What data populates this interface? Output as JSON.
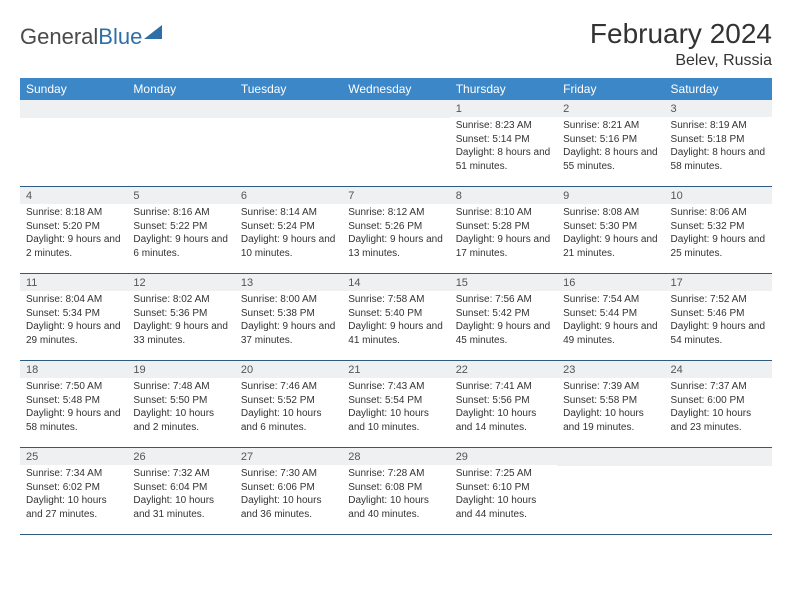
{
  "brand": {
    "word1": "General",
    "word2": "Blue"
  },
  "title": "February 2024",
  "location": "Belev, Russia",
  "colors": {
    "header_bg": "#3b87c8",
    "daynum_bg": "#eef0f1",
    "border": "#2f5a82",
    "brand_blue": "#2f6fa8"
  },
  "dow": [
    "Sunday",
    "Monday",
    "Tuesday",
    "Wednesday",
    "Thursday",
    "Friday",
    "Saturday"
  ],
  "weeks": [
    [
      null,
      null,
      null,
      null,
      {
        "n": "1",
        "sr": "Sunrise: 8:23 AM",
        "ss": "Sunset: 5:14 PM",
        "dl": "Daylight: 8 hours and 51 minutes."
      },
      {
        "n": "2",
        "sr": "Sunrise: 8:21 AM",
        "ss": "Sunset: 5:16 PM",
        "dl": "Daylight: 8 hours and 55 minutes."
      },
      {
        "n": "3",
        "sr": "Sunrise: 8:19 AM",
        "ss": "Sunset: 5:18 PM",
        "dl": "Daylight: 8 hours and 58 minutes."
      }
    ],
    [
      {
        "n": "4",
        "sr": "Sunrise: 8:18 AM",
        "ss": "Sunset: 5:20 PM",
        "dl": "Daylight: 9 hours and 2 minutes."
      },
      {
        "n": "5",
        "sr": "Sunrise: 8:16 AM",
        "ss": "Sunset: 5:22 PM",
        "dl": "Daylight: 9 hours and 6 minutes."
      },
      {
        "n": "6",
        "sr": "Sunrise: 8:14 AM",
        "ss": "Sunset: 5:24 PM",
        "dl": "Daylight: 9 hours and 10 minutes."
      },
      {
        "n": "7",
        "sr": "Sunrise: 8:12 AM",
        "ss": "Sunset: 5:26 PM",
        "dl": "Daylight: 9 hours and 13 minutes."
      },
      {
        "n": "8",
        "sr": "Sunrise: 8:10 AM",
        "ss": "Sunset: 5:28 PM",
        "dl": "Daylight: 9 hours and 17 minutes."
      },
      {
        "n": "9",
        "sr": "Sunrise: 8:08 AM",
        "ss": "Sunset: 5:30 PM",
        "dl": "Daylight: 9 hours and 21 minutes."
      },
      {
        "n": "10",
        "sr": "Sunrise: 8:06 AM",
        "ss": "Sunset: 5:32 PM",
        "dl": "Daylight: 9 hours and 25 minutes."
      }
    ],
    [
      {
        "n": "11",
        "sr": "Sunrise: 8:04 AM",
        "ss": "Sunset: 5:34 PM",
        "dl": "Daylight: 9 hours and 29 minutes."
      },
      {
        "n": "12",
        "sr": "Sunrise: 8:02 AM",
        "ss": "Sunset: 5:36 PM",
        "dl": "Daylight: 9 hours and 33 minutes."
      },
      {
        "n": "13",
        "sr": "Sunrise: 8:00 AM",
        "ss": "Sunset: 5:38 PM",
        "dl": "Daylight: 9 hours and 37 minutes."
      },
      {
        "n": "14",
        "sr": "Sunrise: 7:58 AM",
        "ss": "Sunset: 5:40 PM",
        "dl": "Daylight: 9 hours and 41 minutes."
      },
      {
        "n": "15",
        "sr": "Sunrise: 7:56 AM",
        "ss": "Sunset: 5:42 PM",
        "dl": "Daylight: 9 hours and 45 minutes."
      },
      {
        "n": "16",
        "sr": "Sunrise: 7:54 AM",
        "ss": "Sunset: 5:44 PM",
        "dl": "Daylight: 9 hours and 49 minutes."
      },
      {
        "n": "17",
        "sr": "Sunrise: 7:52 AM",
        "ss": "Sunset: 5:46 PM",
        "dl": "Daylight: 9 hours and 54 minutes."
      }
    ],
    [
      {
        "n": "18",
        "sr": "Sunrise: 7:50 AM",
        "ss": "Sunset: 5:48 PM",
        "dl": "Daylight: 9 hours and 58 minutes."
      },
      {
        "n": "19",
        "sr": "Sunrise: 7:48 AM",
        "ss": "Sunset: 5:50 PM",
        "dl": "Daylight: 10 hours and 2 minutes."
      },
      {
        "n": "20",
        "sr": "Sunrise: 7:46 AM",
        "ss": "Sunset: 5:52 PM",
        "dl": "Daylight: 10 hours and 6 minutes."
      },
      {
        "n": "21",
        "sr": "Sunrise: 7:43 AM",
        "ss": "Sunset: 5:54 PM",
        "dl": "Daylight: 10 hours and 10 minutes."
      },
      {
        "n": "22",
        "sr": "Sunrise: 7:41 AM",
        "ss": "Sunset: 5:56 PM",
        "dl": "Daylight: 10 hours and 14 minutes."
      },
      {
        "n": "23",
        "sr": "Sunrise: 7:39 AM",
        "ss": "Sunset: 5:58 PM",
        "dl": "Daylight: 10 hours and 19 minutes."
      },
      {
        "n": "24",
        "sr": "Sunrise: 7:37 AM",
        "ss": "Sunset: 6:00 PM",
        "dl": "Daylight: 10 hours and 23 minutes."
      }
    ],
    [
      {
        "n": "25",
        "sr": "Sunrise: 7:34 AM",
        "ss": "Sunset: 6:02 PM",
        "dl": "Daylight: 10 hours and 27 minutes."
      },
      {
        "n": "26",
        "sr": "Sunrise: 7:32 AM",
        "ss": "Sunset: 6:04 PM",
        "dl": "Daylight: 10 hours and 31 minutes."
      },
      {
        "n": "27",
        "sr": "Sunrise: 7:30 AM",
        "ss": "Sunset: 6:06 PM",
        "dl": "Daylight: 10 hours and 36 minutes."
      },
      {
        "n": "28",
        "sr": "Sunrise: 7:28 AM",
        "ss": "Sunset: 6:08 PM",
        "dl": "Daylight: 10 hours and 40 minutes."
      },
      {
        "n": "29",
        "sr": "Sunrise: 7:25 AM",
        "ss": "Sunset: 6:10 PM",
        "dl": "Daylight: 10 hours and 44 minutes."
      },
      null,
      null
    ]
  ]
}
